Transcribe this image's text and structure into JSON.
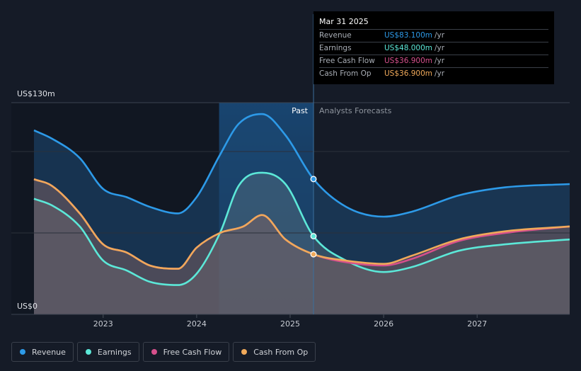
{
  "tooltip": {
    "date": "Mar 31 2025",
    "rows": [
      {
        "label": "Revenue",
        "value": "US$83.100m",
        "unit": "/yr",
        "color": "#2d9ae8"
      },
      {
        "label": "Earnings",
        "value": "US$48.000m",
        "unit": "/yr",
        "color": "#5ce8d8"
      },
      {
        "label": "Free Cash Flow",
        "value": "US$36.900m",
        "unit": "/yr",
        "color": "#d6508c"
      },
      {
        "label": "Cash From Op",
        "value": "US$36.900m",
        "unit": "/yr",
        "color": "#f0a95a"
      }
    ]
  },
  "chart_data": {
    "type": "area",
    "y_top_label": "US$130m",
    "y_bottom_label": "US$0",
    "ylim": [
      0,
      130
    ],
    "xlim": [
      2022.26,
      2027.99
    ],
    "x_ticks": [
      "2023",
      "2024",
      "2025",
      "2026",
      "2027"
    ],
    "x_tick_values": [
      2023,
      2024,
      2025,
      2026,
      2027
    ],
    "past_label": "Past",
    "forecast_label": "Analysts Forecasts",
    "past_band": [
      2024.24,
      2025.25
    ],
    "split_x": 2025.25,
    "series": [
      {
        "name": "Revenue",
        "color": "#2d9ae8",
        "points": [
          [
            2022.26,
            113
          ],
          [
            2022.45,
            108
          ],
          [
            2022.75,
            96
          ],
          [
            2023.0,
            77
          ],
          [
            2023.25,
            72
          ],
          [
            2023.5,
            66
          ],
          [
            2023.8,
            62
          ],
          [
            2024.0,
            72
          ],
          [
            2024.25,
            98
          ],
          [
            2024.45,
            117
          ],
          [
            2024.7,
            123
          ],
          [
            2024.95,
            110
          ],
          [
            2025.25,
            83.1
          ],
          [
            2025.6,
            66
          ],
          [
            2026.0,
            60
          ],
          [
            2026.3,
            63
          ],
          [
            2026.8,
            73
          ],
          [
            2027.3,
            78
          ],
          [
            2027.99,
            80
          ]
        ]
      },
      {
        "name": "Earnings",
        "color": "#5ce8d8",
        "points": [
          [
            2022.26,
            71
          ],
          [
            2022.45,
            67
          ],
          [
            2022.75,
            54
          ],
          [
            2023.0,
            33
          ],
          [
            2023.25,
            27
          ],
          [
            2023.5,
            20
          ],
          [
            2023.8,
            18
          ],
          [
            2024.0,
            25
          ],
          [
            2024.25,
            50
          ],
          [
            2024.45,
            79
          ],
          [
            2024.7,
            87
          ],
          [
            2024.95,
            80
          ],
          [
            2025.25,
            48
          ],
          [
            2025.6,
            33
          ],
          [
            2026.0,
            26
          ],
          [
            2026.3,
            29
          ],
          [
            2026.8,
            39
          ],
          [
            2027.3,
            43
          ],
          [
            2027.99,
            46
          ]
        ]
      },
      {
        "name": "Free Cash Flow",
        "color": "#d6508c",
        "points": [
          [
            2022.26,
            83
          ],
          [
            2022.45,
            79
          ],
          [
            2022.75,
            62
          ],
          [
            2023.0,
            43
          ],
          [
            2023.25,
            38
          ],
          [
            2023.5,
            30
          ],
          [
            2023.8,
            28
          ],
          [
            2024.0,
            41
          ],
          [
            2024.25,
            50
          ],
          [
            2024.5,
            54
          ],
          [
            2024.7,
            61
          ],
          [
            2024.95,
            46
          ],
          [
            2025.25,
            36.9
          ],
          [
            2025.6,
            32
          ],
          [
            2026.0,
            30
          ],
          [
            2026.3,
            34
          ],
          [
            2026.8,
            45
          ],
          [
            2027.3,
            50
          ],
          [
            2027.99,
            54
          ]
        ]
      },
      {
        "name": "Cash From Op",
        "color": "#f0a95a",
        "points": [
          [
            2022.26,
            83
          ],
          [
            2022.45,
            79
          ],
          [
            2022.75,
            62
          ],
          [
            2023.0,
            43
          ],
          [
            2023.25,
            38
          ],
          [
            2023.5,
            30
          ],
          [
            2023.8,
            28
          ],
          [
            2024.0,
            41
          ],
          [
            2024.25,
            50
          ],
          [
            2024.5,
            54
          ],
          [
            2024.7,
            61
          ],
          [
            2024.95,
            46
          ],
          [
            2025.25,
            36.9
          ],
          [
            2025.6,
            33
          ],
          [
            2026.0,
            31
          ],
          [
            2026.3,
            36
          ],
          [
            2026.8,
            46
          ],
          [
            2027.3,
            51
          ],
          [
            2027.99,
            54
          ]
        ]
      }
    ]
  },
  "legend": [
    {
      "label": "Revenue",
      "color": "#2d9ae8"
    },
    {
      "label": "Earnings",
      "color": "#5ce8d8"
    },
    {
      "label": "Free Cash Flow",
      "color": "#d6508c"
    },
    {
      "label": "Cash From Op",
      "color": "#f0a95a"
    }
  ]
}
